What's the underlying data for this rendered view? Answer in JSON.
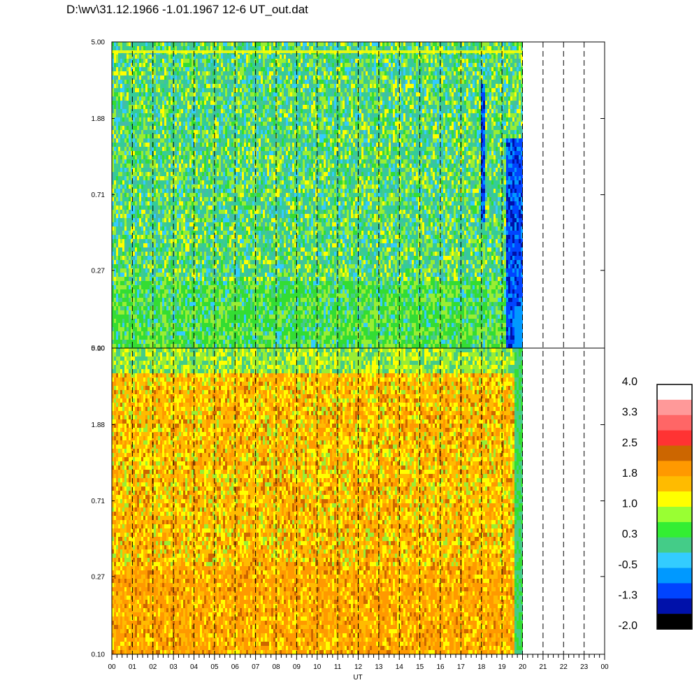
{
  "title": "D:\\wv\\31.12.1966 -1.01.1967  12-6 UT_out.dat",
  "chart_data": {
    "type": "heatmap",
    "xlabel": "UT",
    "x_ticks": [
      "00",
      "01",
      "02",
      "03",
      "04",
      "05",
      "06",
      "07",
      "08",
      "09",
      "10",
      "11",
      "12",
      "13",
      "14",
      "15",
      "16",
      "17",
      "18",
      "19",
      "20",
      "21",
      "22",
      "23",
      "00"
    ],
    "x_range_hours": [
      0,
      24
    ],
    "data_end_hour": 20,
    "dashed_hour_lines": [
      1,
      2,
      3,
      4,
      5,
      6,
      7,
      8,
      9,
      10,
      11,
      12,
      13,
      14,
      15,
      16,
      17,
      18,
      19,
      20,
      21,
      22,
      23
    ],
    "panels": [
      {
        "name": "upper",
        "y_scale": "log",
        "y_range": [
          0.1,
          5.0
        ],
        "y_ticks": [
          "5.00",
          "1.88",
          "0.71",
          "0.27",
          "0.10"
        ],
        "dominant_colors": [
          "#33cc99",
          "#44bbaa",
          "#99ee33",
          "#ffff00",
          "#33dd33"
        ],
        "low_value_bands_hours": [
          {
            "start": 17.9,
            "end": 18.1,
            "y_from": 0.5,
            "y_to": 3.0
          },
          {
            "start": 19.2,
            "end": 20.0,
            "y_from": 0.1,
            "y_to": 1.5
          }
        ]
      },
      {
        "name": "lower",
        "y_scale": "log",
        "y_range": [
          0.1,
          5.0
        ],
        "y_ticks": [
          "5.00",
          "1.88",
          "0.71",
          "0.27",
          "0.10"
        ],
        "dominant_colors": [
          "#ff9900",
          "#ffbb00",
          "#ffff00",
          "#99ee33",
          "#33dd33"
        ]
      }
    ],
    "colorbar": {
      "labels": [
        "4.0",
        "3.3",
        "2.5",
        "1.8",
        "1.0",
        "0.3",
        "-0.5",
        "-1.3",
        "-2.0"
      ],
      "colors_top_to_bottom": [
        "#ffffff",
        "#ff9999",
        "#ff6666",
        "#ff3333",
        "#cc6600",
        "#ff9900",
        "#ffbb00",
        "#ffff00",
        "#99ff33",
        "#33ee33",
        "#44cc88",
        "#33ccff",
        "#0099ff",
        "#0044ff",
        "#0011aa",
        "#000000"
      ]
    }
  }
}
